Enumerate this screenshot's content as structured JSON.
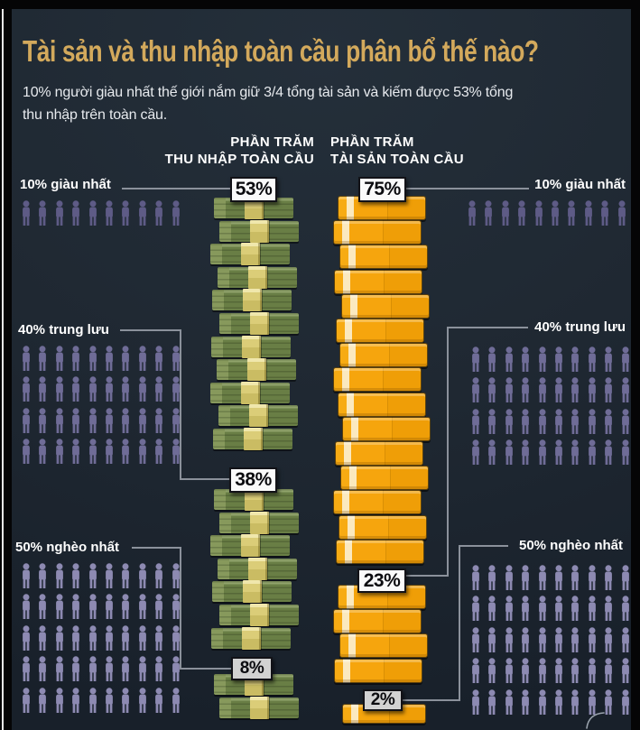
{
  "title": "Tài sản và thu nhập toàn cầu phân bổ thế nào?",
  "subtitle": {
    "lines": [
      "10% người giàu nhất thế giới nắm giữ 3/4 tổng tài sản và kiếm được 53% tổng",
      "thu nhập trên toàn cầu."
    ]
  },
  "headers": {
    "income": {
      "line1": "PHẦN TRĂM",
      "line2": "THU NHẬP TOÀN CẦU"
    },
    "wealth": {
      "line1": "PHẦN TRĂM",
      "line2": "TÀI SẢN TOÀN CẦU"
    }
  },
  "labels": {
    "rich": "10% giàu nhất",
    "middle": "40% trung lưu",
    "poor": "50% nghèo nhất"
  },
  "values": {
    "income": {
      "rich": "53%",
      "middle": "38%",
      "poor": "8%"
    },
    "wealth": {
      "rich": "75%",
      "middle": "23%",
      "poor": "2%"
    }
  },
  "people": {
    "rich": {
      "rows": 1,
      "cols": 10
    },
    "middle": {
      "rows": 4,
      "cols": 10
    },
    "poor": {
      "rows": 5,
      "cols": 10
    }
  },
  "stack_units": {
    "income": {
      "rich": 11,
      "middle": 7,
      "poor": 2
    },
    "wealth": {
      "rich": 15,
      "middle": 4,
      "poor": 1
    }
  },
  "colors": {
    "background": "#1f2832",
    "title_gold": "#d3a95c",
    "text_white": "#e7eaee",
    "line_gray": "#8b919b",
    "person_rich": "#5e5b86",
    "person_middle": "#6f6c97",
    "person_poor": "#8d8ab2",
    "bill_green": "#697e45",
    "bill_band": "#dbcd78",
    "gold_bar": "#f6a50d"
  },
  "chart_data": {
    "type": "bar",
    "title": "Tài sản và thu nhập toàn cầu phân bổ thế nào?",
    "subtitle": "10% người giàu nhất thế giới nắm giữ 3/4 tổng tài sản và kiếm được 53% tổng thu nhập trên toàn cầu.",
    "categories": [
      "10% giàu nhất",
      "40% trung lưu",
      "50% nghèo nhất"
    ],
    "series": [
      {
        "name": "Phần trăm thu nhập toàn cầu",
        "values": [
          53,
          38,
          8
        ]
      },
      {
        "name": "Phần trăm tài sản toàn cầu",
        "values": [
          75,
          23,
          2
        ]
      }
    ],
    "unit": "%",
    "ylim": [
      0,
      100
    ],
    "legend_position": "top",
    "grid": false
  }
}
